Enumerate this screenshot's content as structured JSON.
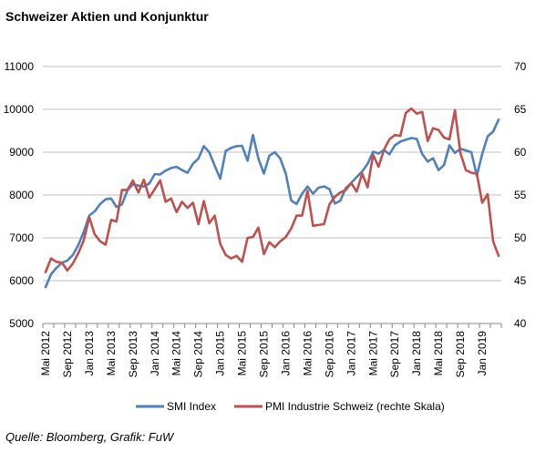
{
  "chart_data": {
    "type": "line",
    "title": "Schweizer Aktien und Konjunktur",
    "source": "Quelle: Bloomberg, Grafik: FuW",
    "colors": {
      "smi": "#4f81bd",
      "pmi": "#c0504d",
      "grid": "#bfbfbf",
      "axis": "#888888"
    },
    "y_left": {
      "min": 5000,
      "max": 11000,
      "ticks": [
        "11000",
        "10000",
        "9000",
        "8000",
        "7000",
        "6000",
        "5000"
      ]
    },
    "y_right": {
      "min": 40,
      "max": 70,
      "ticks": [
        "70",
        "65",
        "60",
        "55",
        "50",
        "45",
        "40"
      ]
    },
    "x_ticks": [
      {
        "index": 0,
        "label": "Mai 2012"
      },
      {
        "index": 4,
        "label": "Sep 2012"
      },
      {
        "index": 8,
        "label": "Jan 2013"
      },
      {
        "index": 12,
        "label": "Mai 2013"
      },
      {
        "index": 16,
        "label": "Sep 2013"
      },
      {
        "index": 20,
        "label": "Jan 2014"
      },
      {
        "index": 24,
        "label": "Mai 2014"
      },
      {
        "index": 28,
        "label": "Sep 2014"
      },
      {
        "index": 32,
        "label": "Jan 2015"
      },
      {
        "index": 36,
        "label": "Mai 2015"
      },
      {
        "index": 40,
        "label": "Sep 2015"
      },
      {
        "index": 44,
        "label": "Jan 2016"
      },
      {
        "index": 48,
        "label": "Mai 2016"
      },
      {
        "index": 52,
        "label": "Sep 2016"
      },
      {
        "index": 56,
        "label": "Jan 2017"
      },
      {
        "index": 60,
        "label": "Mai 2017"
      },
      {
        "index": 64,
        "label": "Sep 2017"
      },
      {
        "index": 68,
        "label": "Jan 2018"
      },
      {
        "index": 72,
        "label": "Mai 2018"
      },
      {
        "index": 76,
        "label": "Sep 2018"
      },
      {
        "index": 80,
        "label": "Jan 2019"
      }
    ],
    "series": [
      {
        "name": "SMI Index",
        "axis": "left",
        "values": [
          5850,
          6150,
          6300,
          6420,
          6470,
          6600,
          6830,
          7140,
          7520,
          7620,
          7790,
          7900,
          7920,
          7720,
          7780,
          8110,
          8250,
          8220,
          8200,
          8270,
          8490,
          8480,
          8570,
          8630,
          8660,
          8580,
          8520,
          8730,
          8850,
          9140,
          9000,
          8680,
          8380,
          9030,
          9100,
          9140,
          9150,
          8800,
          9400,
          8850,
          8500,
          8920,
          9000,
          8850,
          8500,
          7870,
          7790,
          8030,
          8200,
          8030,
          8170,
          8200,
          8140,
          7800,
          7870,
          8160,
          8280,
          8420,
          8550,
          8730,
          9010,
          8970,
          9050,
          8950,
          9160,
          9250,
          9290,
          9330,
          9310,
          8960,
          8780,
          8860,
          8580,
          8700,
          9160,
          8980,
          9080,
          9040,
          9000,
          8450,
          8960,
          9370,
          9480,
          9760
        ]
      },
      {
        "name": "PMI Industrie Schweiz (rechte Skala)",
        "axis": "right",
        "values": [
          46.0,
          47.6,
          47.2,
          47.1,
          46.2,
          47.0,
          48.2,
          49.7,
          52.4,
          50.4,
          49.6,
          49.2,
          52.1,
          51.9,
          55.6,
          55.6,
          56.7,
          55.3,
          56.8,
          54.7,
          55.7,
          56.7,
          54.2,
          54.6,
          53.0,
          54.2,
          53.5,
          54.1,
          51.6,
          54.3,
          51.7,
          52.6,
          49.3,
          48.0,
          47.6,
          47.9,
          47.2,
          50.0,
          50.1,
          51.2,
          48.1,
          49.5,
          48.9,
          49.6,
          50.1,
          51.1,
          52.6,
          52.6,
          55.5,
          51.4,
          51.5,
          51.6,
          53.9,
          54.8,
          55.3,
          55.6,
          56.4,
          55.4,
          57.5,
          55.9,
          59.7,
          58.3,
          60.3,
          61.5,
          62.0,
          61.9,
          64.6,
          65.1,
          64.5,
          64.7,
          61.3,
          62.8,
          62.6,
          61.7,
          61.5,
          64.9,
          59.9,
          57.9,
          57.6,
          57.5,
          54.1,
          55.1,
          49.6,
          47.9
        ]
      }
    ]
  }
}
